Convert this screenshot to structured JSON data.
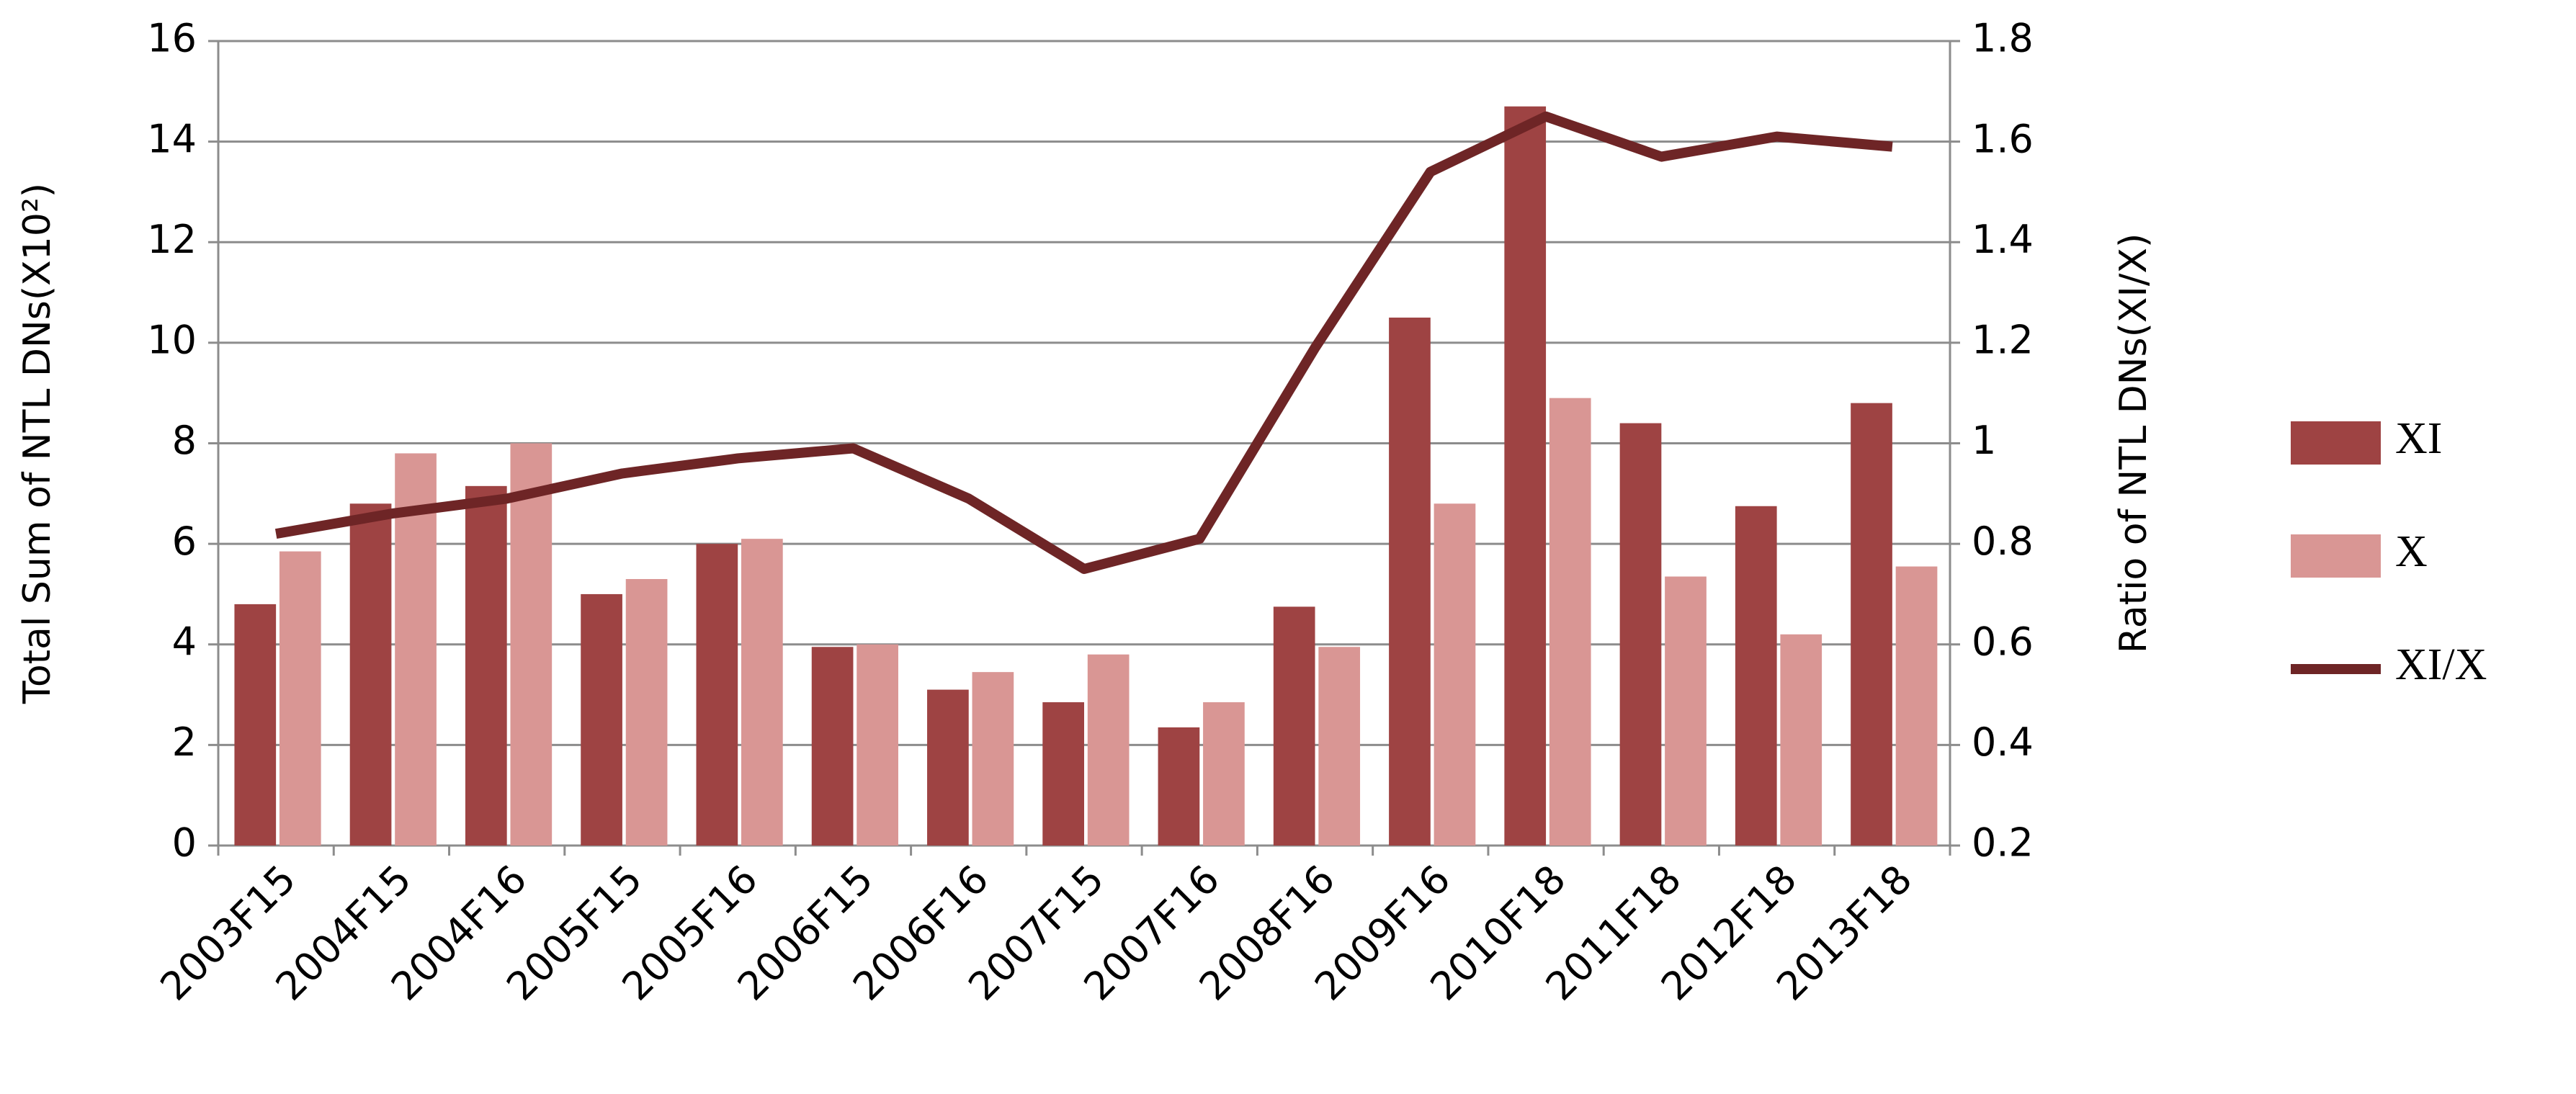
{
  "chart_data": {
    "type": "bar_line",
    "categories": [
      "2003F15",
      "2004F15",
      "2004F16",
      "2005F15",
      "2005F16",
      "2006F15",
      "2006F16",
      "2007F15",
      "2007F16",
      "2008F16",
      "2009F16",
      "2010F18",
      "2011F18",
      "2012F18",
      "2013F18"
    ],
    "series": [
      {
        "name": "XI",
        "type": "bar",
        "color": "#9e4343",
        "values": [
          4.8,
          6.8,
          7.15,
          5.0,
          6.0,
          3.95,
          3.1,
          2.85,
          2.35,
          4.75,
          10.5,
          14.7,
          8.4,
          6.75,
          8.8
        ]
      },
      {
        "name": "X",
        "type": "bar",
        "color": "#d99694",
        "values": [
          5.85,
          7.8,
          8.0,
          5.3,
          6.1,
          4.0,
          3.45,
          3.8,
          2.85,
          3.95,
          6.8,
          8.9,
          5.35,
          4.2,
          5.55
        ]
      },
      {
        "name": "XI/X",
        "type": "line",
        "axis": "y2",
        "color": "#6e2526",
        "values": [
          0.82,
          0.86,
          0.89,
          0.94,
          0.97,
          0.99,
          0.89,
          0.75,
          0.81,
          1.19,
          1.54,
          1.65,
          1.57,
          1.61,
          1.59
        ]
      }
    ],
    "ylabel": "Total Sum of NTL DNs(X10²)",
    "y2label": "Ratio of NTL DNs(XI/X)",
    "ylim": [
      0,
      16
    ],
    "yticks": [
      0,
      2,
      4,
      6,
      8,
      10,
      12,
      14,
      16
    ],
    "y2lim": [
      0.2,
      1.8
    ],
    "y2ticks": [
      0.2,
      0.4,
      0.6,
      0.8,
      1,
      1.2,
      1.4,
      1.6,
      1.8
    ],
    "grid": true,
    "legend": "right"
  }
}
